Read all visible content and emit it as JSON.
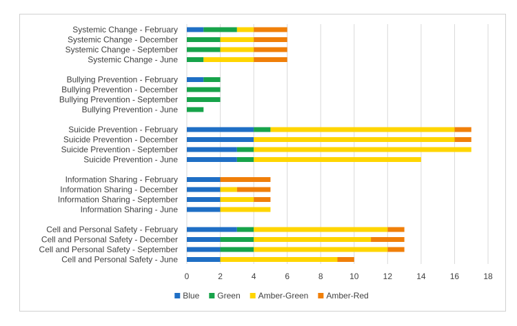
{
  "chart_data": {
    "type": "bar",
    "orientation": "horizontal",
    "stacked": true,
    "title": "",
    "xlabel": "",
    "ylabel": "",
    "xlim": [
      0,
      18
    ],
    "xticks": [
      0,
      2,
      4,
      6,
      8,
      10,
      12,
      14,
      16,
      18
    ],
    "tick_labels": [
      "0",
      "2",
      "4",
      "6",
      "8",
      "10",
      "12",
      "14",
      "16",
      "18"
    ],
    "grid": "vertical",
    "legend_position": "bottom",
    "categories": [
      "Systemic Change - February",
      "Systemic Change - December",
      "Systemic Change - September",
      "Systemic Change - June",
      "Bullying Prevention - February",
      "Bullying Prevention - December",
      "Bullying Prevention - September",
      "Bullying Prevention - June",
      "Suicide Prevention - February",
      "Suicide Prevention - December",
      "Suicide Prevention - September",
      "Suicide Prevention - June",
      "Information Sharing - February",
      "Information Sharing - December",
      "Information Sharing - September",
      "Information Sharing - June",
      "Cell and Personal Safety - February",
      "Cell and Personal Safety - December",
      "Cell and Personal Safety - September",
      "Cell and Personal Safety - June"
    ],
    "series": [
      {
        "name": "Blue",
        "color": "#1f6fc5",
        "values": [
          1,
          0,
          0,
          0,
          1,
          0,
          0,
          0,
          4,
          4,
          3,
          3,
          2,
          2,
          2,
          2,
          3,
          2,
          2,
          2
        ]
      },
      {
        "name": "Green",
        "color": "#17a34a",
        "values": [
          2,
          2,
          2,
          1,
          1,
          2,
          2,
          1,
          1,
          0,
          1,
          1,
          0,
          0,
          0,
          0,
          1,
          2,
          2,
          0
        ]
      },
      {
        "name": "Amber-Green",
        "color": "#ffd500",
        "values": [
          1,
          2,
          2,
          3,
          0,
          0,
          0,
          0,
          11,
          12,
          13,
          10,
          0,
          1,
          2,
          3,
          8,
          7,
          8,
          7
        ]
      },
      {
        "name": "Amber-Red",
        "color": "#f07f09",
        "values": [
          2,
          2,
          2,
          2,
          0,
          0,
          0,
          0,
          1,
          1,
          0,
          0,
          3,
          2,
          1,
          0,
          1,
          2,
          1,
          1
        ]
      }
    ]
  }
}
